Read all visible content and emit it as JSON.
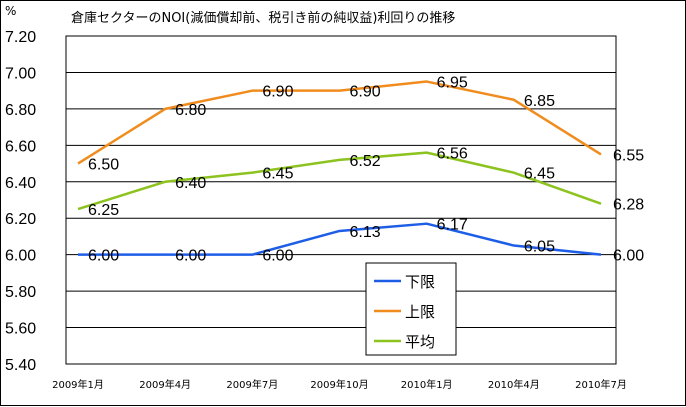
{
  "chart_data": {
    "type": "line",
    "title": "倉庫セクターのNOI(減価償却前、税引き前の純収益)利回りの推移",
    "ylabel": "%",
    "ylim": [
      5.4,
      7.2
    ],
    "y_ticks": [
      "5.40",
      "5.60",
      "5.80",
      "6.00",
      "6.20",
      "6.40",
      "6.60",
      "6.80",
      "7.00",
      "7.20"
    ],
    "categories": [
      "2009年1月",
      "2009年4月",
      "2009年7月",
      "2009年10月",
      "2010年1月",
      "2010年4月",
      "2010年7月"
    ],
    "grid": true,
    "legend_position": "bottom-center",
    "series": [
      {
        "name": "下限",
        "color": "#1e5ee6",
        "values": [
          6.0,
          6.0,
          6.0,
          6.13,
          6.17,
          6.05,
          6.0
        ],
        "labels": [
          "6.00",
          "6.00",
          "6.00",
          "6.13",
          "6.17",
          "6.05",
          "6.00"
        ]
      },
      {
        "name": "上限",
        "color": "#f08c1e",
        "values": [
          6.5,
          6.8,
          6.9,
          6.9,
          6.95,
          6.85,
          6.55
        ],
        "labels": [
          "6.50",
          "6.80",
          "6.90",
          "6.90",
          "6.95",
          "6.85",
          "6.55"
        ]
      },
      {
        "name": "平均",
        "color": "#8cc31e",
        "values": [
          6.25,
          6.4,
          6.45,
          6.52,
          6.56,
          6.45,
          6.28
        ],
        "labels": [
          "6.25",
          "6.40",
          "6.45",
          "6.52",
          "6.56",
          "6.45",
          "6.28"
        ]
      }
    ]
  }
}
